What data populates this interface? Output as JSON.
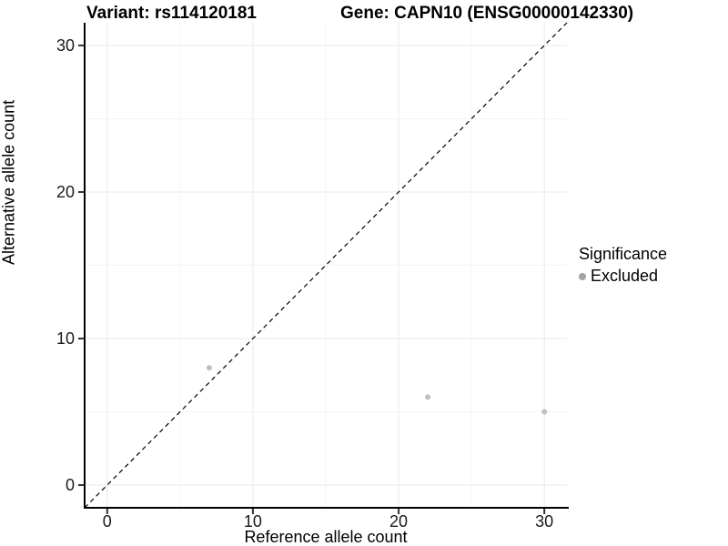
{
  "chart_data": {
    "type": "scatter",
    "title_left": "Variant: rs114120181",
    "title_right": "Gene: CAPN10 (ENSG00000142330)",
    "xlabel": "Reference allele count",
    "ylabel": "Alternative allele count",
    "xlim": [
      -1.55,
      31.55
    ],
    "ylim": [
      -1.55,
      31.55
    ],
    "x_ticks": [
      0,
      10,
      20,
      30
    ],
    "y_ticks": [
      0,
      10,
      20,
      30
    ],
    "x_minor_ticks": [
      5,
      15,
      25
    ],
    "y_minor_ticks": [
      5,
      15,
      25
    ],
    "grid": "major and minor, light gray, white background",
    "series": [
      {
        "name": "Excluded",
        "color": "#bfbfbf",
        "points": [
          {
            "x": 7,
            "y": 8
          },
          {
            "x": 22,
            "y": 6
          },
          {
            "x": 30,
            "y": 5
          }
        ]
      }
    ],
    "reference_line": {
      "kind": "identity y=x",
      "style": "dashed",
      "color": "#000000"
    },
    "legend": {
      "title": "Significance",
      "position": "right",
      "entries": [
        {
          "label": "Excluded",
          "color": "#a3a3a3"
        }
      ]
    }
  },
  "colors": {
    "background": "#ffffff",
    "grid_major": "#e9e9e9",
    "grid_minor": "#f3f3f3",
    "axis_line": "#000000",
    "tick_mark": "#333333",
    "tick_label": "#1a1a1a",
    "point": "#bfbfbf",
    "dashed_line": "#000000"
  }
}
